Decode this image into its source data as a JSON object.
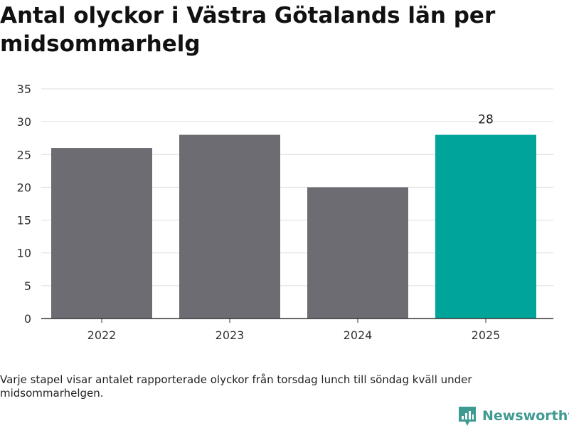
{
  "chart_data": {
    "type": "bar",
    "title": "Antal olyckor i Västra Götalands län per midsommarhelg",
    "categories": [
      "2022",
      "2023",
      "2024",
      "2025"
    ],
    "values": [
      26,
      28,
      20,
      28
    ],
    "bar_colors": [
      "#6d6c72",
      "#6d6c72",
      "#6d6c72",
      "#00a49a"
    ],
    "data_labels": [
      "",
      "",
      "",
      "28"
    ],
    "ylim": [
      0,
      35
    ],
    "yticks": [
      0,
      5,
      10,
      15,
      20,
      25,
      30,
      35
    ],
    "ytick_labels": [
      "0",
      "5",
      "10",
      "15",
      "20",
      "25",
      "30",
      "35"
    ],
    "grid": "horizontal",
    "gridline_color": "#dddddd",
    "xlabel": "",
    "ylabel": ""
  },
  "footnote": "Varje stapel visar antalet rapporterade olyckor från torsdag lunch till söndag kväll under midsommarhelgen.",
  "brand": {
    "name": "Newsworthy",
    "color": "#3f9a92",
    "icon": "newsworthy-logo-icon"
  }
}
